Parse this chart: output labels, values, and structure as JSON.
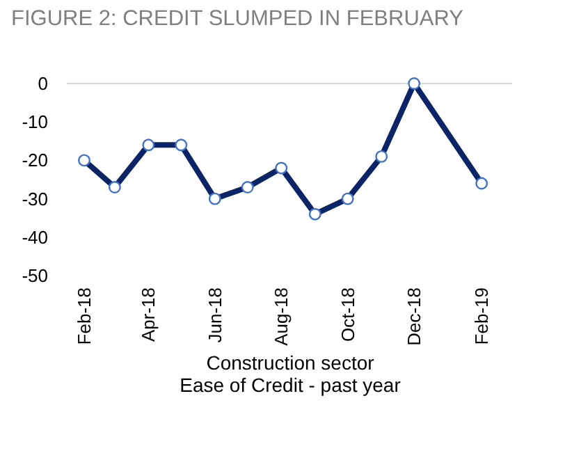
{
  "chart_data": {
    "type": "line",
    "title": "FIGURE 2: CREDIT SLUMPED IN FEBRUARY",
    "xlabel": "Construction sector\nEase of Credit - past year",
    "x": [
      "2018-02",
      "2018-03",
      "2018-04",
      "2018-05",
      "2018-06",
      "2018-07",
      "2018-08",
      "2018-09",
      "2018-10",
      "2018-11",
      "2018-12",
      "2019-02"
    ],
    "series": [
      {
        "color": "#0b2466",
        "values": [
          -20,
          -27,
          -16,
          -16,
          -30,
          -27,
          -22,
          -34,
          -30,
          -19,
          0,
          -26
        ]
      }
    ],
    "marker": "circle",
    "grid": false,
    "xlim": [
      "2018-01-16",
      "2019-03-01"
    ],
    "xticks": [
      {
        "value": "2018-02",
        "label": "Feb-18"
      },
      {
        "value": "2018-04",
        "label": "Apr-18"
      },
      {
        "value": "2018-06",
        "label": "Jun-18"
      },
      {
        "value": "2018-08",
        "label": "Aug-18"
      },
      {
        "value": "2018-10",
        "label": "Oct-18"
      },
      {
        "value": "2018-12",
        "label": "Dec-18"
      },
      {
        "value": "2019-02",
        "label": "Feb-19"
      }
    ],
    "ylim": [
      -50,
      0
    ],
    "yticks": [
      -50,
      -40,
      -30,
      -20,
      -10,
      0
    ],
    "ref_lines": [
      {
        "axis": "y",
        "value": 0,
        "color": "#d9d9d9"
      }
    ]
  }
}
